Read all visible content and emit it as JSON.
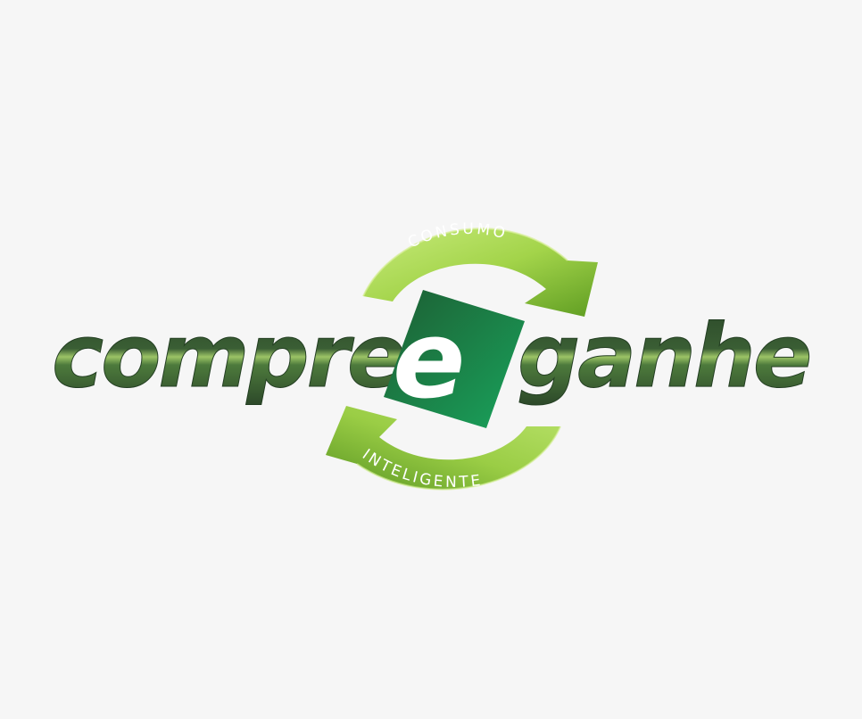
{
  "logo": {
    "word_left": "compre",
    "emblem_letter": "e",
    "word_right": "ganhe",
    "arc_top_text": "CONSUMO",
    "arc_bottom_text": "INTELIGENTE"
  },
  "colors": {
    "background": "#f6f6f6",
    "word_dark_green": "#2c4a2a",
    "word_light_green": "#8fb85a",
    "arrow_light_green": "#a6d64a",
    "arrow_dark_green": "#5e9a24",
    "emblem_dark_green": "#1f6b3a",
    "emblem_bright_green": "#1a9a56"
  }
}
